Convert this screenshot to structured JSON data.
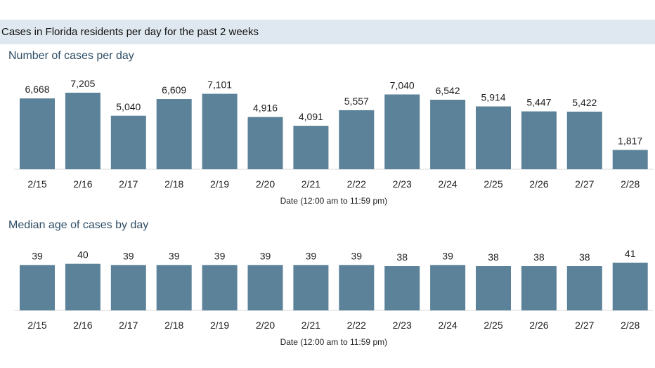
{
  "header": {
    "title": "Cases in Florida residents per day for the past 2 weeks"
  },
  "colors": {
    "bar": "#5b8299",
    "header_band": "#dfe8f0",
    "section_title": "#2f4e66"
  },
  "chart_data": [
    {
      "type": "bar",
      "title": "Number of cases per day",
      "xlabel": "Date (12:00 am to 11:59 pm)",
      "ylabel": "",
      "categories": [
        "2/15",
        "2/16",
        "2/17",
        "2/18",
        "2/19",
        "2/20",
        "2/21",
        "2/22",
        "2/23",
        "2/24",
        "2/25",
        "2/26",
        "2/27",
        "2/28"
      ],
      "values": [
        6668,
        7205,
        5040,
        6609,
        7101,
        4916,
        4091,
        5557,
        7040,
        6542,
        5914,
        5447,
        5422,
        1817
      ],
      "value_labels": [
        "6,668",
        "7,205",
        "5,040",
        "6,609",
        "7,101",
        "4,916",
        "4,091",
        "5,557",
        "7,040",
        "6,542",
        "5,914",
        "5,447",
        "5,422",
        "1,817"
      ],
      "grid": false,
      "legend": "none"
    },
    {
      "type": "bar",
      "title": "Median age of cases by day",
      "xlabel": "Date (12:00 am to 11:59 pm)",
      "ylabel": "",
      "categories": [
        "2/15",
        "2/16",
        "2/17",
        "2/18",
        "2/19",
        "2/20",
        "2/21",
        "2/22",
        "2/23",
        "2/24",
        "2/25",
        "2/26",
        "2/27",
        "2/28"
      ],
      "values": [
        39,
        40,
        39,
        39,
        39,
        39,
        39,
        39,
        38,
        39,
        38,
        38,
        38,
        41
      ],
      "value_labels": [
        "39",
        "40",
        "39",
        "39",
        "39",
        "39",
        "39",
        "39",
        "38",
        "39",
        "38",
        "38",
        "38",
        "41"
      ],
      "grid": false,
      "legend": "none"
    }
  ]
}
